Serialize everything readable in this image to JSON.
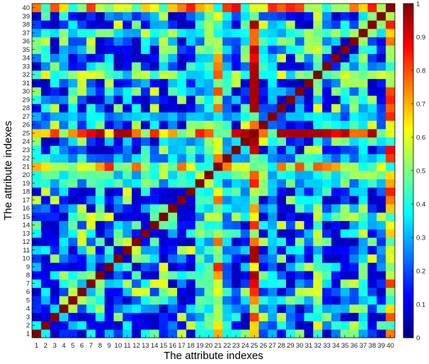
{
  "chart_data": {
    "type": "heatmap",
    "xlabel": "The attribute indexes",
    "ylabel": "The attribute indexes",
    "x_categories": [
      "1",
      "2",
      "3",
      "4",
      "5",
      "6",
      "7",
      "8",
      "9",
      "10",
      "11",
      "12",
      "13",
      "14",
      "15",
      "16",
      "17",
      "18",
      "19",
      "20",
      "21",
      "22",
      "23",
      "24",
      "25",
      "26",
      "27",
      "28",
      "29",
      "30",
      "31",
      "32",
      "33",
      "34",
      "35",
      "36",
      "37",
      "38",
      "39",
      "40"
    ],
    "y_categories": [
      "1",
      "2",
      "3",
      "4",
      "5",
      "6",
      "7",
      "8",
      "9",
      "10",
      "11",
      "12",
      "13",
      "14",
      "15",
      "16",
      "17",
      "18",
      "19",
      "20",
      "21",
      "22",
      "23",
      "24",
      "25",
      "26",
      "27",
      "28",
      "29",
      "30",
      "31",
      "32",
      "33",
      "34",
      "35",
      "36",
      "37",
      "38",
      "39",
      "40"
    ],
    "colorbar": {
      "range": [
        0,
        1
      ],
      "ticks": [
        0,
        0.1,
        0.2,
        0.3,
        0.4,
        0.5,
        0.6,
        0.7,
        0.8,
        0.9,
        1
      ],
      "tick_labels": [
        "0",
        "0.1",
        "0.2",
        "0.3",
        "0.4",
        "0.5",
        "0.6",
        "0.7",
        "0.8",
        "0.9",
        "1"
      ],
      "colormap": "jet"
    },
    "diagonal_value": 1,
    "strong_attributes": {
      "25": 0.85,
      "21": 0.65,
      "32": 0.5,
      "40": 0.7,
      "20": 0.45,
      "37": 0.45,
      "19": 0.4,
      "22": 0.35,
      "27": 0.3
    },
    "base_level": 0.15
  }
}
